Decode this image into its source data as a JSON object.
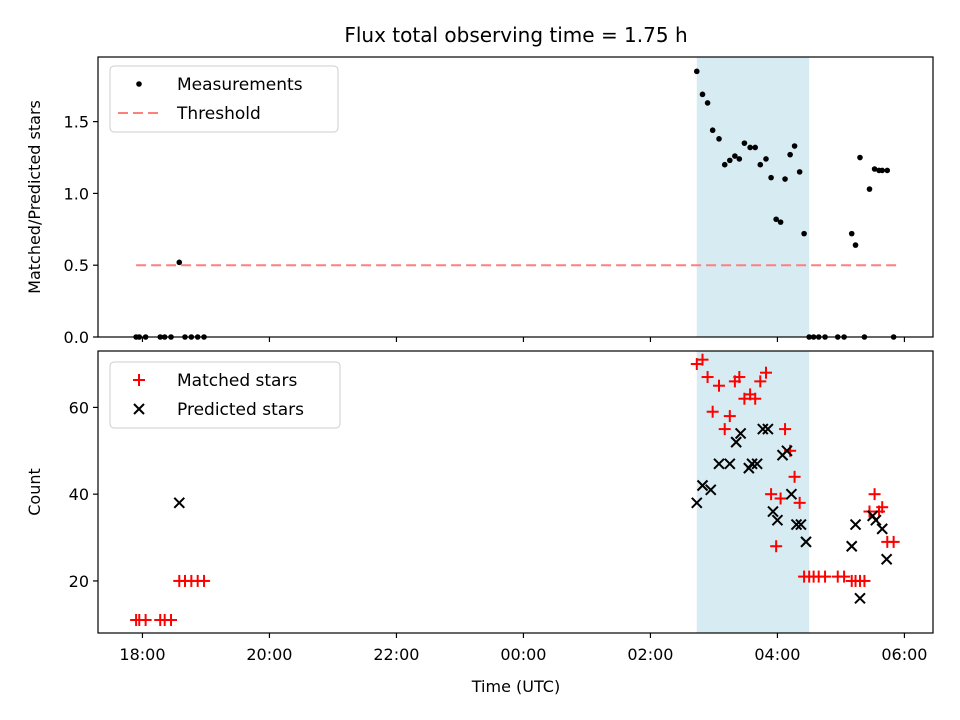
{
  "chart_data": {
    "type": "scatter",
    "title": "Flux total observing time = 1.75 h",
    "xlabel": "Time (UTC)",
    "xticks": [
      {
        "t": 0,
        "label": "18:00"
      },
      {
        "t": 2,
        "label": "20:00"
      },
      {
        "t": 4,
        "label": "22:00"
      },
      {
        "t": 6,
        "label": "00:00"
      },
      {
        "t": 8,
        "label": "02:00"
      },
      {
        "t": 10,
        "label": "04:00"
      },
      {
        "t": 12,
        "label": "06:00"
      }
    ],
    "xlim": [
      -0.7,
      12.45
    ],
    "highlight_span": [
      8.73,
      10.5
    ],
    "highlight_color": "#add8e6",
    "top": {
      "ylabel": "Matched/Predicted stars",
      "ylim": [
        0,
        1.95
      ],
      "yticks": [
        0.0,
        0.5,
        1.0,
        1.5
      ],
      "ytick_labels": [
        "0.0",
        "0.5",
        "1.0",
        "1.5"
      ],
      "legend": [
        {
          "label": "Measurements",
          "marker": "dot",
          "color": "#000000"
        },
        {
          "label": "Threshold",
          "marker": "dash",
          "color": "#ff7f7f"
        }
      ],
      "threshold": {
        "value": 0.5,
        "x": [
          -0.1,
          11.9
        ],
        "color": "#ff7f7f"
      },
      "measurements": {
        "x": [
          -0.1,
          -0.05,
          0.05,
          0.28,
          0.35,
          0.45,
          0.58,
          0.67,
          0.77,
          0.87,
          0.97,
          8.73,
          8.82,
          8.9,
          8.98,
          9.08,
          9.17,
          9.25,
          9.33,
          9.4,
          9.48,
          9.57,
          9.65,
          9.73,
          9.82,
          9.9,
          9.98,
          10.05,
          10.12,
          10.2,
          10.27,
          10.35,
          10.42,
          10.5,
          10.57,
          10.65,
          10.75,
          10.95,
          11.05,
          11.17,
          11.23,
          11.3,
          11.37,
          11.45,
          11.53,
          11.6,
          11.65,
          11.73,
          11.83
        ],
        "y": [
          0,
          0,
          0,
          0,
          0,
          0,
          0.52,
          0,
          0,
          0,
          0,
          1.85,
          1.69,
          1.63,
          1.44,
          1.38,
          1.2,
          1.23,
          1.26,
          1.24,
          1.35,
          1.32,
          1.32,
          1.2,
          1.24,
          1.11,
          0.82,
          0.8,
          1.1,
          1.27,
          1.33,
          1.15,
          0.72,
          0,
          0,
          0,
          0,
          0,
          0,
          0.72,
          0.64,
          1.25,
          0,
          1.03,
          1.17,
          1.16,
          1.16,
          1.16,
          0
        ]
      }
    },
    "bottom": {
      "ylabel": "Count",
      "ylim": [
        8,
        73
      ],
      "yticks": [
        20,
        40,
        60
      ],
      "ytick_labels": [
        "20",
        "40",
        "60"
      ],
      "legend": [
        {
          "label": "Matched stars",
          "marker": "plus",
          "color": "#ff0000"
        },
        {
          "label": "Predicted stars",
          "marker": "x",
          "color": "#000000"
        }
      ],
      "matched": {
        "x": [
          -0.1,
          -0.05,
          0.05,
          0.28,
          0.35,
          0.45,
          0.58,
          0.67,
          0.77,
          0.87,
          0.97,
          8.73,
          8.82,
          8.9,
          8.98,
          9.08,
          9.17,
          9.25,
          9.33,
          9.4,
          9.48,
          9.57,
          9.65,
          9.73,
          9.82,
          9.9,
          9.98,
          10.05,
          10.12,
          10.2,
          10.27,
          10.35,
          10.42,
          10.5,
          10.57,
          10.65,
          10.75,
          10.95,
          11.05,
          11.17,
          11.23,
          11.3,
          11.37,
          11.45,
          11.53,
          11.6,
          11.65,
          11.73,
          11.83
        ],
        "y": [
          11,
          11,
          11,
          11,
          11,
          11,
          20,
          20,
          20,
          20,
          20,
          70,
          71,
          67,
          59,
          65,
          55,
          58,
          66,
          67,
          62,
          63,
          62,
          66,
          68,
          40,
          28,
          39,
          55,
          50,
          44,
          38,
          21,
          21,
          21,
          21,
          21,
          21,
          21,
          20,
          20,
          20,
          20,
          36,
          40,
          36,
          37,
          29,
          29
        ]
      },
      "predicted": {
        "x": [
          0.58,
          8.73,
          8.82,
          8.95,
          9.08,
          9.25,
          9.35,
          9.42,
          9.55,
          9.6,
          9.68,
          9.77,
          9.85,
          9.93,
          10.0,
          10.08,
          10.15,
          10.22,
          10.3,
          10.37,
          10.45,
          11.17,
          11.23,
          11.3,
          11.5,
          11.55,
          11.65,
          11.72
        ],
        "y": [
          38,
          38,
          42,
          41,
          47,
          47,
          52,
          54,
          46,
          47,
          47,
          55,
          55,
          36,
          34,
          49,
          50,
          40,
          33,
          33,
          29,
          28,
          33,
          16,
          35,
          34,
          32,
          25
        ]
      }
    }
  }
}
